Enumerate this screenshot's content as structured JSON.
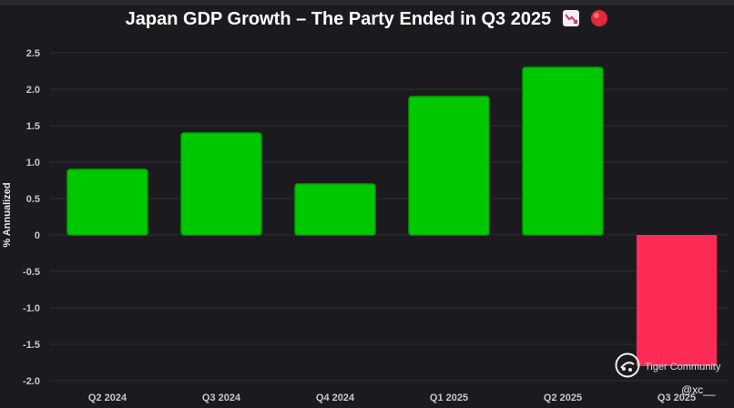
{
  "chart_data": {
    "type": "bar",
    "title": "Japan GDP Growth – The Party Ended in Q3 2025",
    "title_emojis": [
      "chart-decreasing-emoji",
      "red-circle-emoji"
    ],
    "xlabel": "",
    "ylabel": "% Annualized",
    "categories": [
      "Q2 2024",
      "Q3 2024",
      "Q4 2024",
      "Q1 2025",
      "Q2 2025",
      "Q3 2025"
    ],
    "values": [
      0.9,
      1.4,
      0.7,
      1.9,
      2.3,
      -1.8
    ],
    "ylim": [
      -2.0,
      2.5
    ],
    "yticks": [
      2.5,
      2.0,
      1.5,
      1.0,
      0.5,
      0,
      -0.5,
      -1.0,
      -1.5,
      -2.0
    ],
    "ytick_labels": [
      "2.5",
      "2.0",
      "1.5",
      "1.0",
      "0.5",
      "0",
      "-0.5",
      "-1.0",
      "-1.5",
      "-2.0"
    ],
    "grid": true,
    "colors": {
      "positive": "#00c800",
      "positive_edge": "#00a000",
      "negative": "#ff2b57",
      "background": "#1b1b1f",
      "grid": "#2e2e33"
    }
  },
  "watermark": {
    "brand": "Tiger Community",
    "handle": "@xc__"
  }
}
